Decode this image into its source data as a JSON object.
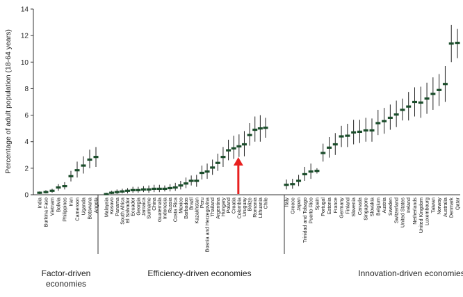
{
  "chart_data": {
    "type": "errorbar",
    "ylabel": "Percentage of adult population (18-64 years)",
    "ylim": [
      0,
      14
    ],
    "yticks": [
      0,
      2,
      4,
      6,
      8,
      10,
      12,
      14
    ],
    "grid": false,
    "legend": "none",
    "colors": {
      "point": "#1b4d2b",
      "errorbar": "#222222",
      "axis": "#333333",
      "arrow": "#e8201f"
    },
    "highlight": {
      "category": "Colombia",
      "marker": "red-arrow"
    },
    "groups": [
      {
        "name": "Factor-driven\neconomies",
        "points": [
          {
            "label": "India",
            "value": 0.15,
            "low": 0.05,
            "high": 0.25
          },
          {
            "label": "Burkina Faso",
            "value": 0.2,
            "low": 0.1,
            "high": 0.35
          },
          {
            "label": "Vietnam",
            "value": 0.3,
            "low": 0.15,
            "high": 0.45
          },
          {
            "label": "Bolivia",
            "value": 0.55,
            "low": 0.3,
            "high": 0.8
          },
          {
            "label": "Philippines",
            "value": 0.65,
            "low": 0.4,
            "high": 0.95
          },
          {
            "label": "Iran",
            "value": 1.4,
            "low": 1.0,
            "high": 1.8
          },
          {
            "label": "Cameroon",
            "value": 1.85,
            "low": 1.3,
            "high": 2.5
          },
          {
            "label": "Uganda",
            "value": 2.2,
            "low": 1.6,
            "high": 2.9
          },
          {
            "label": "Botswana",
            "value": 2.65,
            "low": 2.0,
            "high": 3.4
          },
          {
            "label": "Angola",
            "value": 2.85,
            "low": 2.1,
            "high": 3.6
          }
        ]
      },
      {
        "name": "Efficiency-driven economies",
        "points": [
          {
            "label": "Malaysia",
            "value": 0.05,
            "low": 0.0,
            "high": 0.15
          },
          {
            "label": "Kosovo",
            "value": 0.15,
            "low": 0.05,
            "high": 0.3
          },
          {
            "label": "Panama",
            "value": 0.2,
            "low": 0.05,
            "high": 0.4
          },
          {
            "label": "South Africa",
            "value": 0.25,
            "low": 0.1,
            "high": 0.45
          },
          {
            "label": "El Salvador",
            "value": 0.3,
            "low": 0.1,
            "high": 0.5
          },
          {
            "label": "Ecuador",
            "value": 0.35,
            "low": 0.15,
            "high": 0.6
          },
          {
            "label": "Georgia",
            "value": 0.35,
            "low": 0.15,
            "high": 0.6
          },
          {
            "label": "Jamaica",
            "value": 0.4,
            "low": 0.2,
            "high": 0.65
          },
          {
            "label": "Suriname",
            "value": 0.4,
            "low": 0.15,
            "high": 0.7
          },
          {
            "label": "China",
            "value": 0.45,
            "low": 0.2,
            "high": 0.75
          },
          {
            "label": "Guatemala",
            "value": 0.45,
            "low": 0.2,
            "high": 0.75
          },
          {
            "label": "Indonesia",
            "value": 0.45,
            "low": 0.25,
            "high": 0.7
          },
          {
            "label": "Russia",
            "value": 0.5,
            "low": 0.25,
            "high": 0.8
          },
          {
            "label": "Costa Rica",
            "value": 0.55,
            "low": 0.3,
            "high": 0.9
          },
          {
            "label": "Mexico",
            "value": 0.7,
            "low": 0.4,
            "high": 1.05
          },
          {
            "label": "Barbados",
            "value": 0.85,
            "low": 0.5,
            "high": 1.3
          },
          {
            "label": "Brazil",
            "value": 1.05,
            "low": 0.7,
            "high": 1.45
          },
          {
            "label": "Kazakhstan",
            "value": 1.05,
            "low": 0.6,
            "high": 1.5
          },
          {
            "label": "Peru",
            "value": 1.65,
            "low": 1.15,
            "high": 2.2
          },
          {
            "label": "Bosnia and Herzegovina",
            "value": 1.75,
            "low": 1.2,
            "high": 2.35
          },
          {
            "label": "Thailand",
            "value": 2.05,
            "low": 1.5,
            "high": 2.65
          },
          {
            "label": "Argentina",
            "value": 2.4,
            "low": 1.8,
            "high": 3.1
          },
          {
            "label": "Hungary",
            "value": 2.85,
            "low": 2.1,
            "high": 3.6
          },
          {
            "label": "Poland",
            "value": 3.35,
            "low": 2.6,
            "high": 4.15
          },
          {
            "label": "Croatia",
            "value": 3.5,
            "low": 2.7,
            "high": 4.45
          },
          {
            "label": "Colombia",
            "value": 3.65,
            "low": 2.85,
            "high": 4.55
          },
          {
            "label": "Uruguay",
            "value": 3.8,
            "low": 2.9,
            "high": 4.8
          },
          {
            "label": "Belize",
            "value": 4.5,
            "low": 3.7,
            "high": 5.4
          },
          {
            "label": "Romania",
            "value": 4.9,
            "low": 4.0,
            "high": 5.9
          },
          {
            "label": "Lithuania",
            "value": 5.0,
            "low": 4.0,
            "high": 6.0
          },
          {
            "label": "Chile",
            "value": 5.05,
            "low": 4.3,
            "high": 5.8
          }
        ]
      },
      {
        "name": "Innovation-driven economies",
        "points": [
          {
            "label": "Italy",
            "value": 0.75,
            "low": 0.4,
            "high": 1.15
          },
          {
            "label": "Greece",
            "value": 0.8,
            "low": 0.45,
            "high": 1.2
          },
          {
            "label": "Japan",
            "value": 1.05,
            "low": 0.65,
            "high": 1.5
          },
          {
            "label": "Trinidad and Tobago",
            "value": 1.55,
            "low": 1.05,
            "high": 2.1
          },
          {
            "label": "Puerto Rico",
            "value": 1.75,
            "low": 1.2,
            "high": 2.35
          },
          {
            "label": "Spain",
            "value": 1.8,
            "low": 1.6,
            "high": 2.0
          },
          {
            "label": "Portugal",
            "value": 3.15,
            "low": 2.5,
            "high": 3.85
          },
          {
            "label": "Estonia",
            "value": 3.55,
            "low": 2.8,
            "high": 4.35
          },
          {
            "label": "France",
            "value": 3.8,
            "low": 3.0,
            "high": 4.65
          },
          {
            "label": "Germany",
            "value": 4.4,
            "low": 3.6,
            "high": 5.2
          },
          {
            "label": "Finland",
            "value": 4.45,
            "low": 3.6,
            "high": 5.35
          },
          {
            "label": "Slovenia",
            "value": 4.7,
            "low": 3.8,
            "high": 5.65
          },
          {
            "label": "Canada",
            "value": 4.75,
            "low": 3.9,
            "high": 5.65
          },
          {
            "label": "Singapore",
            "value": 4.85,
            "low": 4.0,
            "high": 5.8
          },
          {
            "label": "Slovakia",
            "value": 4.85,
            "low": 4.0,
            "high": 5.75
          },
          {
            "label": "Belgium",
            "value": 5.4,
            "low": 4.5,
            "high": 6.4
          },
          {
            "label": "Austria",
            "value": 5.55,
            "low": 4.6,
            "high": 6.55
          },
          {
            "label": "Sweden",
            "value": 5.8,
            "low": 4.9,
            "high": 6.8
          },
          {
            "label": "Switzerland",
            "value": 6.05,
            "low": 5.1,
            "high": 7.1
          },
          {
            "label": "United States",
            "value": 6.4,
            "low": 5.6,
            "high": 7.25
          },
          {
            "label": "Ireland",
            "value": 6.65,
            "low": 5.6,
            "high": 7.75
          },
          {
            "label": "Netherlands",
            "value": 7.0,
            "low": 5.9,
            "high": 8.1
          },
          {
            "label": "United Kingdom",
            "value": 6.95,
            "low": 5.8,
            "high": 8.15
          },
          {
            "label": "Luxembourg",
            "value": 7.25,
            "low": 6.1,
            "high": 8.45
          },
          {
            "label": "Taiwan",
            "value": 7.6,
            "low": 6.4,
            "high": 8.85
          },
          {
            "label": "Norway",
            "value": 7.9,
            "low": 6.7,
            "high": 9.1
          },
          {
            "label": "Australia",
            "value": 8.35,
            "low": 7.0,
            "high": 9.7
          },
          {
            "label": "Denmark",
            "value": 11.4,
            "low": 10.0,
            "high": 12.8
          },
          {
            "label": "Qatar",
            "value": 11.45,
            "low": 10.3,
            "high": 12.5
          }
        ]
      }
    ]
  }
}
